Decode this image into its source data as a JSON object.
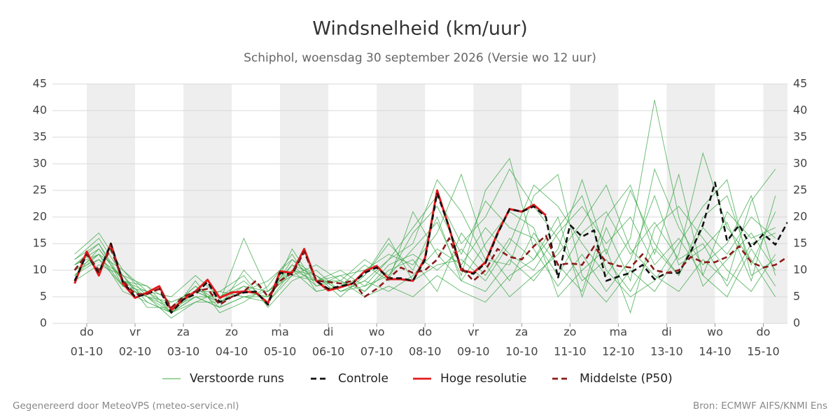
{
  "chart_data": {
    "type": "line",
    "title": "Windsnelheid (km/uur)",
    "subtitle": "Schiphol, woensdag 30 september 2026 (Versie wo 12 uur)",
    "footer_left": "Gegenereerd door MeteoVPS (meteo-service.nl)",
    "footer_right": "Bron: ECMWF AIFS/KNMI Ens",
    "xlim": [
      "2026-09-30T07:00",
      "2026-10-15T12:00"
    ],
    "xticks": [
      {
        "value": "2026-10-01T00:00",
        "label": [
          "do",
          "01-10"
        ]
      },
      {
        "value": "2026-10-02T00:00",
        "label": [
          "vr",
          "02-10"
        ]
      },
      {
        "value": "2026-10-03T00:00",
        "label": [
          "za",
          "03-10"
        ]
      },
      {
        "value": "2026-10-04T00:00",
        "label": [
          "zo",
          "04-10"
        ]
      },
      {
        "value": "2026-10-05T00:00",
        "label": [
          "ma",
          "05-10"
        ]
      },
      {
        "value": "2026-10-06T00:00",
        "label": [
          "di",
          "06-10"
        ]
      },
      {
        "value": "2026-10-07T00:00",
        "label": [
          "wo",
          "07-10"
        ]
      },
      {
        "value": "2026-10-08T00:00",
        "label": [
          "do",
          "08-10"
        ]
      },
      {
        "value": "2026-10-09T00:00",
        "label": [
          "vr",
          "09-10"
        ]
      },
      {
        "value": "2026-10-10T00:00",
        "label": [
          "za",
          "10-10"
        ]
      },
      {
        "value": "2026-10-11T00:00",
        "label": [
          "zo",
          "11-10"
        ]
      },
      {
        "value": "2026-10-12T00:00",
        "label": [
          "ma",
          "12-10"
        ]
      },
      {
        "value": "2026-10-13T00:00",
        "label": [
          "di",
          "13-10"
        ]
      },
      {
        "value": "2026-10-14T00:00",
        "label": [
          "wo",
          "14-10"
        ]
      },
      {
        "value": "2026-10-15T00:00",
        "label": [
          "do",
          "15-10"
        ]
      }
    ],
    "ylim": [
      0,
      45
    ],
    "yticks": [
      0,
      5,
      10,
      15,
      20,
      25,
      30,
      35,
      40,
      45
    ],
    "y2lim": [
      0,
      45
    ],
    "y2ticks": [
      0,
      5,
      10,
      15,
      20,
      25,
      30,
      35,
      40,
      45
    ],
    "grid": true,
    "legend": "bottom",
    "ensemble": {
      "name": "Verstoorde runs",
      "color": "#3aa845",
      "x": [
        "2026-09-30T18:00",
        "2026-10-01T06:00",
        "2026-10-01T18:00",
        "2026-10-02T06:00",
        "2026-10-02T18:00",
        "2026-10-03T06:00",
        "2026-10-03T18:00",
        "2026-10-04T06:00",
        "2026-10-04T18:00",
        "2026-10-05T06:00",
        "2026-10-05T18:00",
        "2026-10-06T06:00",
        "2026-10-06T18:00",
        "2026-10-07T06:00",
        "2026-10-07T18:00",
        "2026-10-08T06:00",
        "2026-10-08T18:00",
        "2026-10-09T06:00",
        "2026-10-09T18:00",
        "2026-10-10T06:00",
        "2026-10-10T18:00",
        "2026-10-11T06:00",
        "2026-10-11T18:00",
        "2026-10-12T06:00",
        "2026-10-12T18:00",
        "2026-10-13T06:00",
        "2026-10-13T18:00",
        "2026-10-14T06:00",
        "2026-10-14T18:00",
        "2026-10-15T06:00"
      ],
      "members": [
        [
          12,
          16,
          9,
          4,
          2,
          5,
          5,
          8,
          4,
          10,
          9,
          6,
          8,
          12,
          18,
          24,
          15,
          20,
          29,
          22,
          16,
          8,
          12,
          6,
          14,
          9,
          18,
          13,
          20,
          16
        ],
        [
          9,
          13,
          7,
          6,
          3,
          7,
          3,
          5,
          6,
          11,
          7,
          8,
          5,
          7,
          5,
          9,
          6,
          4,
          9,
          12,
          18,
          24,
          10,
          5,
          8,
          15,
          22,
          27,
          9,
          12
        ],
        [
          11,
          15,
          8,
          5,
          1,
          4,
          4,
          6,
          5,
          12,
          8,
          9,
          10,
          13,
          11,
          17,
          28,
          14,
          8,
          17,
          11,
          6,
          20,
          26,
          13,
          28,
          9,
          5,
          14,
          7
        ],
        [
          8,
          11,
          9,
          7,
          4,
          6,
          6,
          9,
          3,
          8,
          10,
          6,
          7,
          9,
          14,
          19,
          9,
          25,
          31,
          14,
          7,
          13,
          6,
          12,
          24,
          11,
          14,
          19,
          8,
          24
        ],
        [
          10,
          13,
          6,
          4,
          2,
          8,
          2,
          4,
          7,
          13,
          6,
          7,
          9,
          16,
          8,
          11,
          12,
          8,
          15,
          26,
          22,
          15,
          9,
          16,
          42,
          20,
          7,
          12,
          17,
          10
        ],
        [
          13,
          17,
          10,
          6,
          5,
          9,
          5,
          7,
          4,
          9,
          11,
          8,
          6,
          10,
          12,
          6,
          17,
          11,
          5,
          9,
          13,
          19,
          26,
          14,
          9,
          6,
          12,
          8,
          23,
          29
        ],
        [
          9,
          12,
          7,
          5,
          3,
          5,
          3,
          10,
          5,
          10,
          6,
          7,
          11,
          8,
          21,
          13,
          8,
          15,
          21,
          18,
          5,
          10,
          14,
          2,
          18,
          22,
          16,
          10,
          6,
          13
        ],
        [
          11,
          14,
          8,
          6,
          2,
          6,
          4,
          16,
          6,
          9,
          8,
          10,
          7,
          12,
          15,
          27,
          21,
          12,
          11,
          24,
          28,
          9,
          4,
          10,
          6,
          13,
          32,
          18,
          12,
          5
        ],
        [
          10,
          12,
          9,
          3,
          3,
          7,
          4,
          6,
          8,
          12,
          9,
          6,
          8,
          6,
          9,
          14,
          11,
          18,
          13,
          10,
          17,
          22,
          15,
          20,
          11,
          16,
          9,
          21,
          16,
          18
        ],
        [
          12,
          15,
          7,
          5,
          2,
          4,
          6,
          5,
          4,
          14,
          7,
          9,
          6,
          11,
          13,
          10,
          14,
          9,
          16,
          12,
          20,
          5,
          18,
          8,
          29,
          18,
          11,
          15,
          24,
          9
        ],
        [
          9,
          14,
          8,
          7,
          2,
          5,
          3,
          5,
          5,
          11,
          9,
          5,
          9,
          15,
          10,
          20,
          8,
          6,
          12,
          8,
          14,
          27,
          13,
          25,
          15,
          9,
          20,
          24,
          11,
          21
        ],
        [
          11,
          13,
          10,
          5,
          4,
          6,
          4,
          7,
          6,
          10,
          8,
          8,
          12,
          9,
          17,
          22,
          13,
          23,
          18,
          16,
          9,
          17,
          21,
          13,
          19,
          12,
          15,
          7,
          15,
          17
        ]
      ]
    },
    "x": [
      "2026-09-30T18:00",
      "2026-10-01T00:00",
      "2026-10-01T06:00",
      "2026-10-01T12:00",
      "2026-10-01T18:00",
      "2026-10-02T00:00",
      "2026-10-02T06:00",
      "2026-10-02T12:00",
      "2026-10-02T18:00",
      "2026-10-03T00:00",
      "2026-10-03T06:00",
      "2026-10-03T12:00",
      "2026-10-03T18:00",
      "2026-10-04T00:00",
      "2026-10-04T06:00",
      "2026-10-04T12:00",
      "2026-10-04T18:00",
      "2026-10-05T00:00",
      "2026-10-05T06:00",
      "2026-10-05T12:00",
      "2026-10-05T18:00",
      "2026-10-06T00:00",
      "2026-10-06T06:00",
      "2026-10-06T12:00",
      "2026-10-06T18:00",
      "2026-10-07T00:00",
      "2026-10-07T06:00",
      "2026-10-07T12:00",
      "2026-10-07T18:00",
      "2026-10-08T00:00",
      "2026-10-08T06:00",
      "2026-10-08T12:00",
      "2026-10-08T18:00",
      "2026-10-09T00:00",
      "2026-10-09T06:00",
      "2026-10-09T12:00",
      "2026-10-09T18:00",
      "2026-10-10T00:00",
      "2026-10-10T06:00",
      "2026-10-10T12:00",
      "2026-10-10T18:00",
      "2026-10-11T00:00",
      "2026-10-11T06:00",
      "2026-10-11T12:00",
      "2026-10-11T18:00",
      "2026-10-12T00:00",
      "2026-10-12T06:00",
      "2026-10-12T12:00",
      "2026-10-12T18:00",
      "2026-10-13T00:00",
      "2026-10-13T06:00",
      "2026-10-13T12:00",
      "2026-10-13T18:00",
      "2026-10-14T00:00",
      "2026-10-14T06:00",
      "2026-10-14T12:00",
      "2026-10-14T18:00",
      "2026-10-15T00:00",
      "2026-10-15T06:00",
      "2026-10-15T12:00"
    ],
    "series": [
      {
        "name": "Controle",
        "color": "#111111",
        "dash": true,
        "values": [
          8,
          13,
          9.5,
          15,
          7.8,
          5,
          5.5,
          6.5,
          2,
          4.5,
          5.5,
          7.8,
          4,
          5,
          5.8,
          6,
          3.5,
          9.5,
          9.2,
          13.5,
          8,
          6.5,
          7,
          7.5,
          9.5,
          10.5,
          8.5,
          8.5,
          8,
          12,
          24.5,
          18,
          10,
          9.3,
          11.3,
          16.8,
          21.5,
          21,
          22,
          20,
          8.5,
          18.5,
          16.3,
          17.5,
          8,
          8.8,
          9.5,
          11,
          8.3,
          9.5,
          9.5,
          13.5,
          18.5,
          26.5,
          15.5,
          18.5,
          14.3,
          16.8,
          14.8,
          19
        ]
      },
      {
        "name": "Hoge resolutie",
        "color": "#e31a1c",
        "dash": false,
        "values": [
          7.5,
          13.5,
          9,
          15,
          7.5,
          4.8,
          5.8,
          7,
          2.5,
          4.5,
          6,
          8.2,
          4.8,
          5.8,
          6,
          5.8,
          3.8,
          9.8,
          9.5,
          14,
          8,
          6.2,
          6.8,
          7.5,
          9.8,
          10.8,
          8.3,
          8.3,
          8,
          12.3,
          25,
          18,
          10,
          9.5,
          11.5,
          17,
          21.5,
          21,
          22.3,
          20.3,
          null,
          null,
          null,
          null,
          null,
          null,
          null,
          null,
          null,
          null,
          null,
          null,
          null,
          null,
          null,
          null,
          null,
          null,
          null,
          null
        ]
      },
      {
        "name": "Middelste (P50)",
        "color": "#8b1a1a",
        "dash": true,
        "values": [
          10,
          13,
          10,
          14,
          8,
          5.5,
          5.5,
          6.5,
          3,
          5,
          6,
          6.5,
          3.5,
          5,
          6,
          8,
          5,
          8,
          9.5,
          13.5,
          8,
          7.8,
          7.5,
          8,
          5,
          6.5,
          8.5,
          10.5,
          9.5,
          10,
          12,
          16,
          10.5,
          8,
          10,
          14,
          12.5,
          12,
          14.5,
          16.5,
          11,
          11.3,
          11,
          14.5,
          11.5,
          10.8,
          10.5,
          13,
          10,
          9.5,
          10,
          12.5,
          11.5,
          11.5,
          12.5,
          14.5,
          11.5,
          10.5,
          11,
          12.5
        ]
      }
    ]
  }
}
